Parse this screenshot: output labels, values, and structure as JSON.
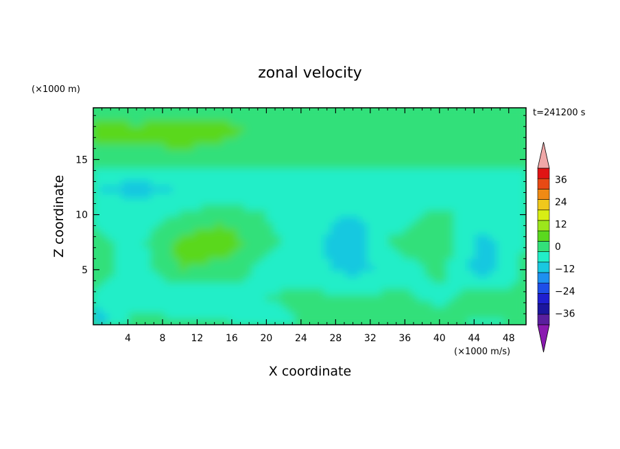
{
  "chart_data": {
    "type": "heatmap",
    "title": "zonal velocity",
    "xlabel": "X coordinate",
    "ylabel": "Z coordinate",
    "y_unit": "(×1000 m)",
    "x_unit": "(×1000 m/s)",
    "time_label": "t=241200 s",
    "xlim": [
      0,
      50
    ],
    "ylim": [
      0,
      19.7
    ],
    "x_ticks": [
      4,
      8,
      12,
      16,
      20,
      24,
      28,
      32,
      36,
      40,
      44,
      48
    ],
    "x_tick_labels": [
      "4",
      "8",
      "12",
      "16",
      "20",
      "24",
      "28",
      "32",
      "36",
      "40",
      "44",
      "48"
    ],
    "y_ticks": [
      5,
      10,
      15
    ],
    "y_tick_labels": [
      "5",
      "10",
      "15"
    ],
    "colorbar": {
      "levels": [
        -42,
        -36,
        -30,
        -24,
        -18,
        -12,
        -6,
        0,
        6,
        12,
        18,
        24,
        30,
        36,
        42
      ],
      "colors": [
        "#5a1f9e",
        "#1c169e",
        "#1f1fd0",
        "#1e4ee8",
        "#1e90f0",
        "#19c8e0",
        "#22eec8",
        "#33e07a",
        "#5ad81e",
        "#9ce61c",
        "#d8ee14",
        "#f0c81c",
        "#f08a14",
        "#e84a14",
        "#e01414"
      ],
      "under_color": "#8a1ab0",
      "over_color": "#f0a8a8",
      "tick_values": [
        36,
        24,
        12,
        0,
        -12,
        -24,
        -36
      ],
      "tick_labels": [
        "36",
        "24",
        "12",
        "0",
        "−12",
        "−24",
        "−36"
      ]
    },
    "field": {
      "description": "zonal velocity contour field, values in colorbar units",
      "x": [
        0,
        5,
        10,
        15,
        20,
        25,
        30,
        35,
        40,
        45,
        50
      ],
      "z": [
        0,
        2.5,
        5,
        7.5,
        10,
        12.5,
        15,
        17.5,
        19.7
      ],
      "values": [
        [
          -12,
          4,
          2,
          2,
          -6,
          2,
          4,
          2,
          4,
          -2,
          2
        ],
        [
          -2,
          -4,
          -6,
          -4,
          0,
          2,
          0,
          2,
          -2,
          4,
          0
        ],
        [
          4,
          -4,
          6,
          4,
          -2,
          -4,
          -8,
          -4,
          2,
          -10,
          2
        ],
        [
          2,
          -2,
          8,
          10,
          2,
          -4,
          -10,
          2,
          4,
          -8,
          0
        ],
        [
          -2,
          -4,
          0,
          4,
          0,
          -4,
          -6,
          -4,
          2,
          -4,
          -2
        ],
        [
          -6,
          -8,
          -6,
          -4,
          -6,
          -6,
          -6,
          -6,
          -6,
          -6,
          -6
        ],
        [
          2,
          2,
          2,
          2,
          2,
          2,
          2,
          2,
          2,
          2,
          2
        ],
        [
          10,
          8,
          12,
          8,
          4,
          2,
          4,
          6,
          6,
          4,
          6
        ],
        [
          2,
          2,
          2,
          4,
          4,
          2,
          2,
          2,
          4,
          2,
          2
        ]
      ]
    }
  }
}
